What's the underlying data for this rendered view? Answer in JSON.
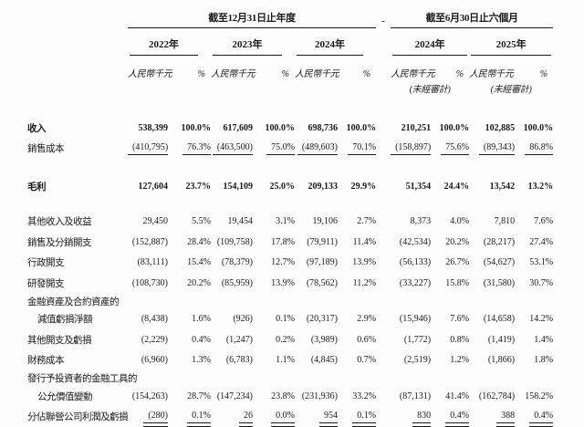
{
  "table": {
    "header": {
      "period_annual": "截至12月31日止年度",
      "period_interim": "截至6月30日止六個月",
      "separator": "-",
      "years_annual": [
        "2022年",
        "2023年",
        "2024年"
      ],
      "years_interim": [
        "2024年",
        "2025年"
      ],
      "unit_label": "人民幣千元",
      "percent_label": "%",
      "unaudited_note": "(未經審計)"
    },
    "rows": [
      {
        "t": "row",
        "bold": true,
        "label": "收入",
        "cells": [
          "538,399",
          "100.0%",
          "617,609",
          "100.0%",
          "698,736",
          "100.0%",
          "210,251",
          "100.0%",
          "102,885",
          "100.0%"
        ]
      },
      {
        "t": "row",
        "u": true,
        "label": "銷售成本",
        "cells": [
          "(410,795)",
          "76.3%",
          "(463,500)",
          "75.0%",
          "(489,603)",
          "70.1%",
          "(158,897)",
          "75.6%",
          "(89,343)",
          "86.8%"
        ]
      },
      {
        "t": "sp",
        "h": 19
      },
      {
        "t": "row",
        "bold": true,
        "label": "毛利",
        "cells": [
          "127,604",
          "23.7%",
          "154,109",
          "25.0%",
          "209,133",
          "29.9%",
          "51,354",
          "24.4%",
          "13,542",
          "13.2%"
        ]
      },
      {
        "t": "sp",
        "h": 16
      },
      {
        "t": "row",
        "label": "其他收入及收益",
        "cells": [
          "29,450",
          "5.5%",
          "19,454",
          "3.1%",
          "19,106",
          "2.7%",
          "8,373",
          "4.0%",
          "7,810",
          "7.6%"
        ]
      },
      {
        "t": "row",
        "label": "銷售及分銷開支",
        "cells": [
          "(152,887)",
          "28.4%",
          "(109,758)",
          "17.8%",
          "(79,911)",
          "11.4%",
          "(42,534)",
          "20.2%",
          "(28,217)",
          "27.4%"
        ]
      },
      {
        "t": "row",
        "label": "行政開支",
        "cells": [
          "(83,111)",
          "15.4%",
          "(78,379)",
          "12.7%",
          "(97,189)",
          "13.9%",
          "(56,133)",
          "26.7%",
          "(54,627)",
          "53.1%"
        ]
      },
      {
        "t": "row",
        "label": "研發開支",
        "cells": [
          "(108,730)",
          "20.2%",
          "(85,959)",
          "13.9%",
          "(78,562)",
          "11.2%",
          "(33,227)",
          "15.8%",
          "(31,580)",
          "30.7%"
        ]
      },
      {
        "t": "lbl",
        "label": "金融資產及合約資產的"
      },
      {
        "t": "row",
        "ind": true,
        "label": "減值虧損淨額",
        "cells": [
          "(8,438)",
          "1.6%",
          "(926)",
          "0.1%",
          "(20,317)",
          "2.9%",
          "(15,946)",
          "7.6%",
          "(14,658)",
          "14.2%"
        ]
      },
      {
        "t": "row",
        "label": "其他開支及虧損",
        "cells": [
          "(2,229)",
          "0.4%",
          "(1,247)",
          "0.2%",
          "(3,989)",
          "0.6%",
          "(1,772)",
          "0.8%",
          "(1,419)",
          "1.4%"
        ]
      },
      {
        "t": "row",
        "label": "財務成本",
        "cells": [
          "(6,960)",
          "1.3%",
          "(6,783)",
          "1.1%",
          "(4,845)",
          "0.7%",
          "(2,519)",
          "1.2%",
          "(1,866)",
          "1.8%"
        ]
      },
      {
        "t": "lbl",
        "label": "發行予投資者的金融工具的"
      },
      {
        "t": "row",
        "ind": true,
        "label": "公允價值變動",
        "cells": [
          "(154,263)",
          "28.7%",
          "(147,234)",
          "23.8%",
          "(231,936)",
          "33.2%",
          "(87,131)",
          "41.4%",
          "(162,784)",
          "158.2%"
        ]
      },
      {
        "t": "row",
        "u": true,
        "dbl": true,
        "label": "分佔聯營公司利潤及虧損",
        "cells": [
          "(280)",
          "0.1%",
          "26",
          "0.0%",
          "954",
          "0.1%",
          "830",
          "0.4%",
          "388",
          "0.4%"
        ]
      }
    ]
  }
}
